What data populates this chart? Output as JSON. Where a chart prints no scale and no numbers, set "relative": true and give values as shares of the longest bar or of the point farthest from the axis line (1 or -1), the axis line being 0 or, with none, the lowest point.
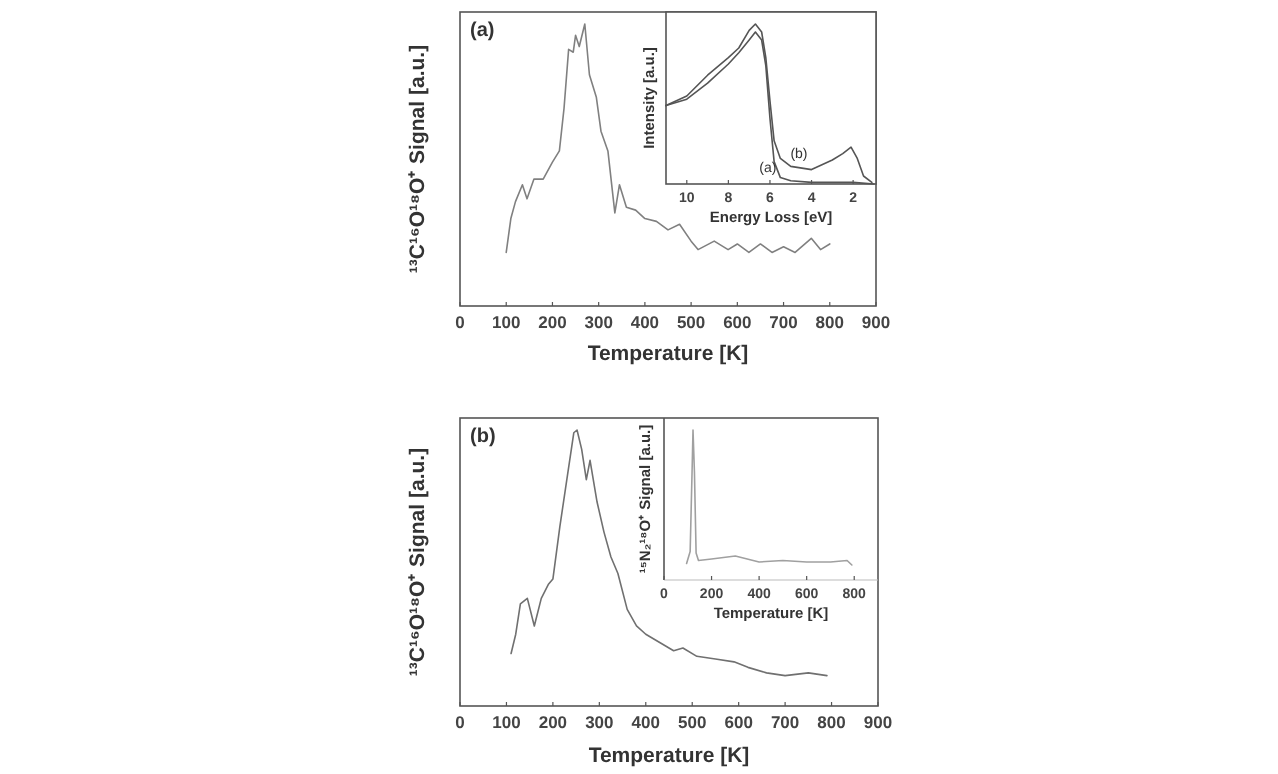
{
  "chart_data": [
    {
      "type": "line",
      "title": "(a)",
      "xlabel": "Temperature [K]",
      "ylabel": "¹³C¹⁶O¹⁸O⁺ Signal [a.u.]",
      "relative": true,
      "xlim": [
        0,
        900
      ],
      "xticks": [
        0,
        100,
        200,
        300,
        400,
        500,
        600,
        700,
        800,
        900
      ],
      "x": [
        100,
        110,
        120,
        135,
        145,
        160,
        180,
        200,
        215,
        225,
        235,
        245,
        250,
        258,
        270,
        280,
        295,
        305,
        320,
        335,
        345,
        360,
        380,
        400,
        425,
        450,
        475,
        500,
        515,
        550,
        580,
        600,
        625,
        650,
        675,
        700,
        725,
        760,
        780,
        800
      ],
      "series": [
        {
          "color": "#808080",
          "values": [
            0.19,
            0.31,
            0.37,
            0.43,
            0.38,
            0.45,
            0.45,
            0.51,
            0.55,
            0.7,
            0.91,
            0.9,
            0.96,
            0.92,
            1.0,
            0.82,
            0.74,
            0.62,
            0.55,
            0.33,
            0.43,
            0.35,
            0.34,
            0.31,
            0.3,
            0.27,
            0.29,
            0.23,
            0.2,
            0.23,
            0.2,
            0.22,
            0.19,
            0.22,
            0.19,
            0.21,
            0.19,
            0.24,
            0.2,
            0.22
          ]
        }
      ]
    },
    {
      "type": "line",
      "xlabel": "Energy Loss [eV]",
      "ylabel": "Intensity [a.u.]",
      "relative": true,
      "xlim": [
        11,
        0.9
      ],
      "xticks": [
        10,
        8,
        6,
        4,
        2
      ],
      "series": [
        {
          "name": "(a)",
          "color": "#555555",
          "x": [
            11,
            10,
            9,
            8,
            7.5,
            7,
            6.7,
            6.4,
            6.2,
            6,
            5.8,
            5.5,
            5,
            4,
            2,
            1
          ],
          "values": [
            0.49,
            0.53,
            0.63,
            0.75,
            0.82,
            0.9,
            0.95,
            0.9,
            0.74,
            0.41,
            0.14,
            0.04,
            0.02,
            0.01,
            0.01,
            0
          ]
        },
        {
          "name": "(b)",
          "color": "#555555",
          "x": [
            11,
            10,
            9,
            8,
            7.5,
            7,
            6.7,
            6.4,
            6.2,
            6,
            5.8,
            5.5,
            5,
            4,
            3,
            2.5,
            2.1,
            1.8,
            1.5,
            1.1
          ],
          "values": [
            0.49,
            0.55,
            0.68,
            0.79,
            0.85,
            0.96,
            1.0,
            0.95,
            0.79,
            0.52,
            0.27,
            0.16,
            0.11,
            0.09,
            0.15,
            0.19,
            0.23,
            0.16,
            0.05,
            0.01
          ]
        }
      ]
    },
    {
      "type": "line",
      "title": "(b)",
      "xlabel": "Temperature [K]",
      "ylabel": "¹³C¹⁶O¹⁸O⁺ Signal [a.u.]",
      "relative": true,
      "xlim": [
        0,
        900
      ],
      "xticks": [
        0,
        100,
        200,
        300,
        400,
        500,
        600,
        700,
        800,
        900
      ],
      "x": [
        110,
        120,
        130,
        145,
        160,
        175,
        190,
        200,
        215,
        230,
        245,
        252,
        262,
        272,
        280,
        295,
        310,
        325,
        340,
        360,
        380,
        400,
        430,
        460,
        480,
        510,
        550,
        590,
        620,
        660,
        700,
        750,
        790
      ],
      "series": [
        {
          "color": "#707070",
          "values": [
            0.19,
            0.26,
            0.37,
            0.39,
            0.29,
            0.39,
            0.44,
            0.46,
            0.65,
            0.82,
            0.99,
            1.0,
            0.93,
            0.82,
            0.89,
            0.74,
            0.63,
            0.54,
            0.48,
            0.35,
            0.29,
            0.26,
            0.23,
            0.2,
            0.21,
            0.18,
            0.17,
            0.16,
            0.14,
            0.12,
            0.11,
            0.12,
            0.11
          ]
        }
      ]
    },
    {
      "type": "line",
      "xlabel": "Temperature [K]",
      "ylabel": "¹⁵N₂¹⁸O⁺ Signal [a.u.]",
      "relative": true,
      "xlim": [
        0,
        900
      ],
      "xticks": [
        0,
        200,
        400,
        600,
        800
      ],
      "x": [
        95,
        110,
        118,
        122,
        128,
        135,
        145,
        200,
        300,
        400,
        500,
        600,
        700,
        770,
        790
      ],
      "series": [
        {
          "color": "#a0a0a0",
          "values": [
            0.11,
            0.19,
            0.72,
            1.0,
            0.72,
            0.18,
            0.13,
            0.14,
            0.16,
            0.12,
            0.13,
            0.12,
            0.12,
            0.13,
            0.1
          ]
        }
      ]
    }
  ]
}
